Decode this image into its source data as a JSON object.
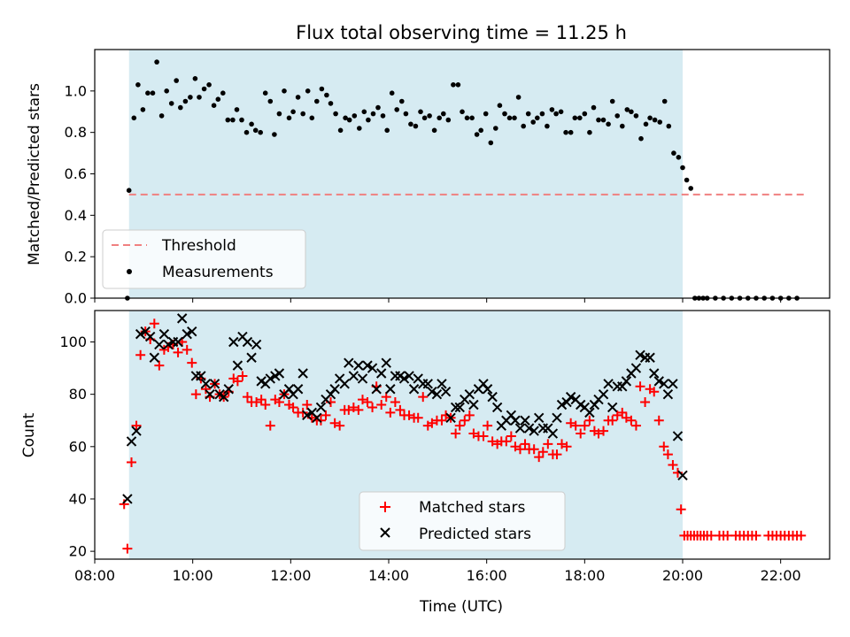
{
  "chart_data": [
    {
      "type": "scatter",
      "title": "Flux total observing time = 11.25 h",
      "ylabel": "Matched/Predicted stars",
      "xlabel": "",
      "xlim": [
        "08:00",
        "23:00"
      ],
      "ylim": [
        0,
        1.2
      ],
      "y_ticks": [
        "0.0",
        "0.2",
        "0.4",
        "0.6",
        "0.8",
        "1.0"
      ],
      "x_ticks": [
        "08:00",
        "10:00",
        "12:00",
        "14:00",
        "16:00",
        "18:00",
        "20:00",
        "22:00"
      ],
      "shaded_span": [
        "08:42",
        "20:00"
      ],
      "threshold": {
        "name": "Threshold",
        "value": 0.5,
        "x_range": [
          "08:42",
          "22:30"
        ],
        "color": "#f08080"
      },
      "legend": {
        "placement": "lower-left",
        "entries": [
          "Threshold",
          "Measurements"
        ]
      },
      "series": [
        {
          "name": "Measurements",
          "x": [
            "08:40",
            "08:42",
            "08:48",
            "08:53",
            "08:59",
            "09:05",
            "09:11",
            "09:16",
            "09:22",
            "09:28",
            "09:34",
            "09:40",
            "09:45",
            "09:51",
            "09:57",
            "10:03",
            "10:08",
            "10:14",
            "10:20",
            "10:26",
            "10:31",
            "10:37",
            "10:43",
            "10:49",
            "10:54",
            "11:00",
            "11:06",
            "11:12",
            "11:17",
            "11:23",
            "11:29",
            "11:35",
            "11:40",
            "11:46",
            "11:52",
            "11:58",
            "12:03",
            "12:09",
            "12:15",
            "12:21",
            "12:26",
            "12:32",
            "12:38",
            "12:44",
            "12:49",
            "12:55",
            "13:01",
            "13:07",
            "13:12",
            "13:18",
            "13:24",
            "13:30",
            "13:35",
            "13:41",
            "13:47",
            "13:53",
            "13:58",
            "14:04",
            "14:10",
            "14:16",
            "14:21",
            "14:27",
            "14:33",
            "14:39",
            "14:44",
            "14:50",
            "14:56",
            "15:02",
            "15:07",
            "15:13",
            "15:19",
            "15:25",
            "15:30",
            "15:36",
            "15:42",
            "15:48",
            "15:53",
            "15:59",
            "16:05",
            "16:11",
            "16:16",
            "16:22",
            "16:28",
            "16:34",
            "16:39",
            "16:45",
            "16:51",
            "16:57",
            "17:02",
            "17:08",
            "17:14",
            "17:20",
            "17:25",
            "17:31",
            "17:37",
            "17:43",
            "17:48",
            "17:54",
            "18:00",
            "18:06",
            "18:11",
            "18:17",
            "18:23",
            "18:29",
            "18:34",
            "18:40",
            "18:46",
            "18:52",
            "18:57",
            "19:03",
            "19:09",
            "19:15",
            "19:20",
            "19:26",
            "19:32",
            "19:38",
            "19:43",
            "19:49",
            "19:55",
            "20:00",
            "20:05",
            "20:10",
            "20:15",
            "20:20",
            "20:25",
            "20:30",
            "20:40",
            "20:50",
            "21:00",
            "21:10",
            "21:20",
            "21:30",
            "21:40",
            "21:50",
            "22:00",
            "22:10",
            "22:20"
          ],
          "y": [
            0.0,
            0.52,
            0.87,
            1.03,
            0.91,
            0.99,
            0.99,
            1.14,
            0.88,
            1.0,
            0.94,
            1.05,
            0.92,
            0.95,
            0.97,
            1.06,
            0.97,
            1.01,
            1.03,
            0.93,
            0.96,
            0.99,
            0.86,
            0.86,
            0.91,
            0.86,
            0.8,
            0.84,
            0.81,
            0.8,
            0.99,
            0.95,
            0.79,
            0.89,
            1.0,
            0.87,
            0.9,
            0.97,
            0.89,
            1.0,
            0.87,
            0.95,
            1.01,
            0.98,
            0.94,
            0.89,
            0.81,
            0.87,
            0.86,
            0.88,
            0.82,
            0.9,
            0.86,
            0.89,
            0.92,
            0.88,
            0.81,
            0.99,
            0.91,
            0.95,
            0.89,
            0.84,
            0.83,
            0.9,
            0.87,
            0.88,
            0.81,
            0.87,
            0.89,
            0.86,
            1.03,
            1.03,
            0.9,
            0.87,
            0.87,
            0.79,
            0.81,
            0.89,
            0.75,
            0.82,
            0.93,
            0.89,
            0.87,
            0.87,
            0.97,
            0.83,
            0.89,
            0.85,
            0.87,
            0.89,
            0.83,
            0.91,
            0.89,
            0.9,
            0.8,
            0.8,
            0.87,
            0.87,
            0.89,
            0.8,
            0.92,
            0.86,
            0.86,
            0.84,
            0.95,
            0.88,
            0.83,
            0.91,
            0.9,
            0.88,
            0.77,
            0.84,
            0.87,
            0.86,
            0.85,
            0.95,
            0.83,
            0.7,
            0.68,
            0.63,
            0.57,
            0.53,
            0.0,
            0.0,
            0.0,
            0.0,
            0.0,
            0.0,
            0.0,
            0.0,
            0.0,
            0.0,
            0.0,
            0.0,
            0.0,
            0.0,
            0.0
          ],
          "color": "#000000"
        }
      ]
    },
    {
      "type": "scatter",
      "title": "",
      "ylabel": "Count",
      "xlabel": "Time (UTC)",
      "xlim": [
        "08:00",
        "23:00"
      ],
      "ylim": [
        17,
        112
      ],
      "y_ticks": [
        "20",
        "40",
        "60",
        "80",
        "100"
      ],
      "x_ticks": [
        "08:00",
        "10:00",
        "12:00",
        "14:00",
        "16:00",
        "18:00",
        "20:00",
        "22:00"
      ],
      "shaded_span": [
        "08:42",
        "20:00"
      ],
      "legend": {
        "placement": "lower-center",
        "entries": [
          "Matched stars",
          "Predicted stars"
        ]
      },
      "series": [
        {
          "name": "Matched stars",
          "marker": "+",
          "color": "#ff0000",
          "x": [
            "08:36",
            "08:40",
            "08:45",
            "08:51",
            "08:56",
            "09:02",
            "09:08",
            "09:13",
            "09:19",
            "09:25",
            "09:30",
            "09:36",
            "09:42",
            "09:47",
            "09:53",
            "09:59",
            "10:04",
            "10:10",
            "10:16",
            "10:21",
            "10:27",
            "10:33",
            "10:38",
            "10:44",
            "10:50",
            "10:55",
            "11:01",
            "11:07",
            "11:12",
            "11:18",
            "11:24",
            "11:29",
            "11:35",
            "11:41",
            "11:46",
            "11:52",
            "11:58",
            "12:03",
            "12:09",
            "12:15",
            "12:20",
            "12:26",
            "12:32",
            "12:37",
            "12:43",
            "12:49",
            "12:54",
            "13:00",
            "13:06",
            "13:11",
            "13:17",
            "13:23",
            "13:28",
            "13:34",
            "13:40",
            "13:45",
            "13:51",
            "13:57",
            "14:02",
            "14:08",
            "14:14",
            "14:19",
            "14:25",
            "14:31",
            "14:36",
            "14:42",
            "14:48",
            "14:53",
            "14:59",
            "15:05",
            "15:10",
            "15:16",
            "15:22",
            "15:27",
            "15:33",
            "15:39",
            "15:44",
            "15:50",
            "15:56",
            "16:01",
            "16:07",
            "16:13",
            "16:18",
            "16:24",
            "16:30",
            "16:35",
            "16:41",
            "16:47",
            "16:52",
            "16:58",
            "17:04",
            "17:09",
            "17:15",
            "17:21",
            "17:26",
            "17:32",
            "17:38",
            "17:43",
            "17:49",
            "17:55",
            "18:00",
            "18:06",
            "18:12",
            "18:17",
            "18:23",
            "18:29",
            "18:34",
            "18:40",
            "18:46",
            "18:51",
            "18:57",
            "19:03",
            "19:08",
            "19:14",
            "19:20",
            "19:25",
            "19:31",
            "19:37",
            "19:42",
            "19:48",
            "19:54",
            "19:58",
            "20:02",
            "20:06",
            "20:10",
            "20:14",
            "20:18",
            "20:22",
            "20:26",
            "20:30",
            "20:35",
            "20:45",
            "20:50",
            "20:55",
            "21:05",
            "21:10",
            "21:15",
            "21:20",
            "21:25",
            "21:30",
            "21:45",
            "21:50",
            "21:55",
            "22:00",
            "22:05",
            "22:10",
            "22:15",
            "22:20",
            "22:25"
          ],
          "y": [
            38,
            21,
            54,
            68,
            95,
            104,
            101,
            107,
            91,
            97,
            98,
            99,
            96,
            100,
            97,
            92,
            80,
            86,
            82,
            79,
            84,
            80,
            79,
            81,
            86,
            85,
            87,
            79,
            77,
            77,
            78,
            76,
            68,
            78,
            77,
            80,
            76,
            75,
            73,
            73,
            76,
            71,
            70,
            70,
            72,
            77,
            69,
            68,
            74,
            74,
            75,
            74,
            78,
            77,
            75,
            83,
            76,
            79,
            73,
            77,
            74,
            72,
            72,
            71,
            71,
            79,
            68,
            69,
            70,
            70,
            72,
            71,
            65,
            68,
            70,
            72,
            65,
            64,
            64,
            68,
            62,
            61,
            62,
            62,
            64,
            60,
            59,
            61,
            59,
            59,
            56,
            58,
            61,
            57,
            57,
            61,
            60,
            69,
            68,
            65,
            68,
            70,
            66,
            65,
            66,
            70,
            70,
            72,
            73,
            71,
            70,
            68,
            83,
            77,
            82,
            81,
            70,
            60,
            57,
            53,
            50,
            36,
            26,
            26,
            26,
            26,
            26,
            26,
            26,
            26,
            26,
            26,
            26,
            26,
            26,
            26,
            26,
            26,
            26,
            26,
            26,
            26,
            26,
            26,
            26,
            26,
            26,
            26,
            26
          ]
        },
        {
          "name": "Predicted stars",
          "marker": "x",
          "color": "#000000",
          "x": [
            "08:40",
            "08:45",
            "08:51",
            "08:56",
            "09:02",
            "09:08",
            "09:13",
            "09:19",
            "09:25",
            "09:30",
            "09:36",
            "09:42",
            "09:47",
            "09:53",
            "09:59",
            "10:04",
            "10:10",
            "10:16",
            "10:21",
            "10:27",
            "10:33",
            "10:38",
            "10:44",
            "10:50",
            "10:55",
            "11:01",
            "11:07",
            "11:12",
            "11:18",
            "11:24",
            "11:29",
            "11:35",
            "11:41",
            "11:46",
            "11:52",
            "11:58",
            "12:03",
            "12:09",
            "12:15",
            "12:20",
            "12:26",
            "12:32",
            "12:37",
            "12:43",
            "12:49",
            "12:54",
            "13:00",
            "13:06",
            "13:11",
            "13:17",
            "13:23",
            "13:28",
            "13:34",
            "13:40",
            "13:45",
            "13:51",
            "13:57",
            "14:02",
            "14:08",
            "14:14",
            "14:19",
            "14:25",
            "14:31",
            "14:36",
            "14:42",
            "14:48",
            "14:53",
            "14:59",
            "15:05",
            "15:10",
            "15:16",
            "15:22",
            "15:27",
            "15:33",
            "15:39",
            "15:44",
            "15:50",
            "15:56",
            "16:01",
            "16:07",
            "16:13",
            "16:18",
            "16:24",
            "16:30",
            "16:35",
            "16:41",
            "16:47",
            "16:52",
            "16:58",
            "17:04",
            "17:09",
            "17:15",
            "17:21",
            "17:26",
            "17:32",
            "17:38",
            "17:43",
            "17:49",
            "17:55",
            "18:00",
            "18:06",
            "18:12",
            "18:17",
            "18:23",
            "18:29",
            "18:34",
            "18:40",
            "18:46",
            "18:51",
            "18:57",
            "19:03",
            "19:08",
            "19:14",
            "19:20",
            "19:25",
            "19:31",
            "19:37",
            "19:42",
            "19:48",
            "19:54",
            "20:00"
          ],
          "y": [
            40,
            62,
            66,
            103,
            104,
            102,
            94,
            99,
            103,
            99,
            100,
            100,
            109,
            103,
            104,
            87,
            87,
            84,
            80,
            84,
            80,
            79,
            82,
            100,
            91,
            102,
            100,
            94,
            99,
            85,
            84,
            86,
            87,
            88,
            80,
            82,
            80,
            82,
            88,
            72,
            73,
            71,
            75,
            78,
            80,
            82,
            86,
            84,
            92,
            87,
            91,
            86,
            91,
            90,
            82,
            88,
            92,
            82,
            87,
            87,
            86,
            87,
            82,
            86,
            84,
            84,
            81,
            80,
            84,
            81,
            71,
            75,
            75,
            78,
            80,
            76,
            82,
            84,
            82,
            79,
            75,
            68,
            70,
            72,
            70,
            67,
            70,
            67,
            66,
            71,
            67,
            67,
            65,
            71,
            76,
            77,
            79,
            78,
            76,
            75,
            73,
            76,
            78,
            80,
            84,
            75,
            83,
            83,
            85,
            88,
            90,
            95,
            94,
            94,
            88,
            85,
            84,
            80,
            84,
            64,
            49
          ]
        }
      ]
    }
  ]
}
